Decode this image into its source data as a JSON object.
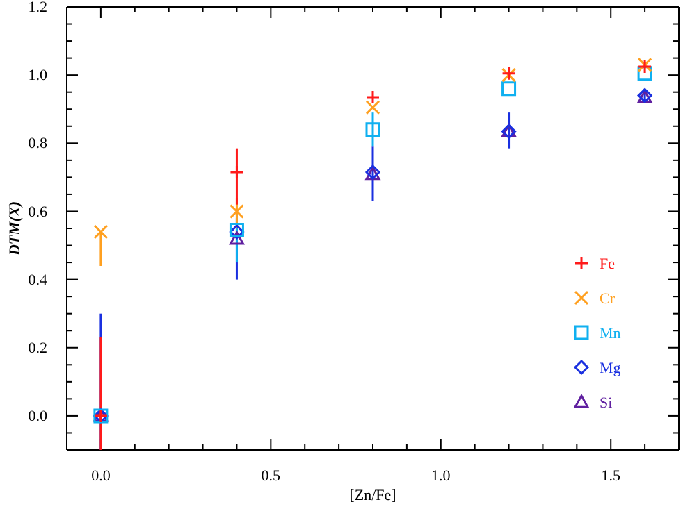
{
  "chart_data": {
    "type": "scatter",
    "xlabel": "[Zn/Fe]",
    "ylabel": "DTM(X)",
    "xlim": [
      -0.1,
      1.7
    ],
    "ylim": [
      -0.1,
      1.2
    ],
    "xticks": [
      {
        "value": 0,
        "label": "0.0"
      },
      {
        "value": 0.1,
        "label": null
      },
      {
        "value": 0.2,
        "label": null
      },
      {
        "value": 0.3,
        "label": null
      },
      {
        "value": 0.4,
        "label": null
      },
      {
        "value": 0.5,
        "label": "0.5"
      },
      {
        "value": 0.6,
        "label": null
      },
      {
        "value": 0.7,
        "label": null
      },
      {
        "value": 0.8,
        "label": null
      },
      {
        "value": 0.9,
        "label": null
      },
      {
        "value": 1,
        "label": "1.0"
      },
      {
        "value": 1.1,
        "label": null
      },
      {
        "value": 1.2,
        "label": null
      },
      {
        "value": 1.3,
        "label": null
      },
      {
        "value": 1.4,
        "label": null
      },
      {
        "value": 1.5,
        "label": "1.5"
      },
      {
        "value": 1.6,
        "label": null
      }
    ],
    "yticks": [
      {
        "value": -0.05,
        "label": null
      },
      {
        "value": 0,
        "label": "0.0"
      },
      {
        "value": 0.05,
        "label": null
      },
      {
        "value": 0.1,
        "label": null
      },
      {
        "value": 0.15,
        "label": null
      },
      {
        "value": 0.2,
        "label": "0.2"
      },
      {
        "value": 0.25,
        "label": null
      },
      {
        "value": 0.3,
        "label": null
      },
      {
        "value": 0.35,
        "label": null
      },
      {
        "value": 0.4,
        "label": "0.4"
      },
      {
        "value": 0.45,
        "label": null
      },
      {
        "value": 0.5,
        "label": null
      },
      {
        "value": 0.55,
        "label": null
      },
      {
        "value": 0.6,
        "label": "0.6"
      },
      {
        "value": 0.65,
        "label": null
      },
      {
        "value": 0.7,
        "label": null
      },
      {
        "value": 0.75,
        "label": null
      },
      {
        "value": 0.8,
        "label": "0.8"
      },
      {
        "value": 0.85,
        "label": null
      },
      {
        "value": 0.9,
        "label": null
      },
      {
        "value": 0.95,
        "label": null
      },
      {
        "value": 1,
        "label": "1.0"
      },
      {
        "value": 1.05,
        "label": null
      },
      {
        "value": 1.1,
        "label": null
      },
      {
        "value": 1.15,
        "label": null
      },
      {
        "value": 1.2,
        "label": "1.2"
      }
    ],
    "x": [
      0,
      0.4,
      0.8,
      1.2,
      1.6
    ],
    "legend": "right",
    "grid": false,
    "series": [
      {
        "name": "Fe",
        "color": "#ff1a1a",
        "marker": "cross",
        "values": [
          0,
          0.715,
          0.935,
          1.005,
          1.025
        ],
        "errors": [
          [
            -0.1,
            0.23
          ],
          [
            0.62,
            0.785
          ],
          null,
          null,
          null
        ]
      },
      {
        "name": "Cr",
        "color": "#ffa020",
        "marker": "x",
        "values": [
          0.54,
          0.6,
          0.905,
          1,
          1.03
        ],
        "errors": [
          [
            0.44,
            0.54
          ],
          [
            0.55,
            0.64
          ],
          null,
          null,
          null
        ]
      },
      {
        "name": "Mn",
        "color": "#10b0f0",
        "marker": "square",
        "values": [
          0,
          0.545,
          0.84,
          0.96,
          1.005
        ],
        "errors": [
          null,
          [
            0.45,
            0.6
          ],
          [
            0.79,
            0.89
          ],
          null,
          null
        ]
      },
      {
        "name": "Mg",
        "color": "#1a30e0",
        "marker": "diamond",
        "values": [
          0,
          0.54,
          0.715,
          0.835,
          0.94
        ],
        "errors": [
          [
            -0.1,
            0.3
          ],
          [
            0.4,
            0.58
          ],
          [
            0.63,
            0.79
          ],
          [
            0.785,
            0.89
          ],
          [
            0.92,
            0.96
          ]
        ]
      },
      {
        "name": "Si",
        "color": "#6020a0",
        "marker": "triangle",
        "values": [
          0,
          0.52,
          0.71,
          0.835,
          0.935
        ],
        "errors": [
          null,
          null,
          null,
          null,
          null
        ]
      }
    ]
  }
}
